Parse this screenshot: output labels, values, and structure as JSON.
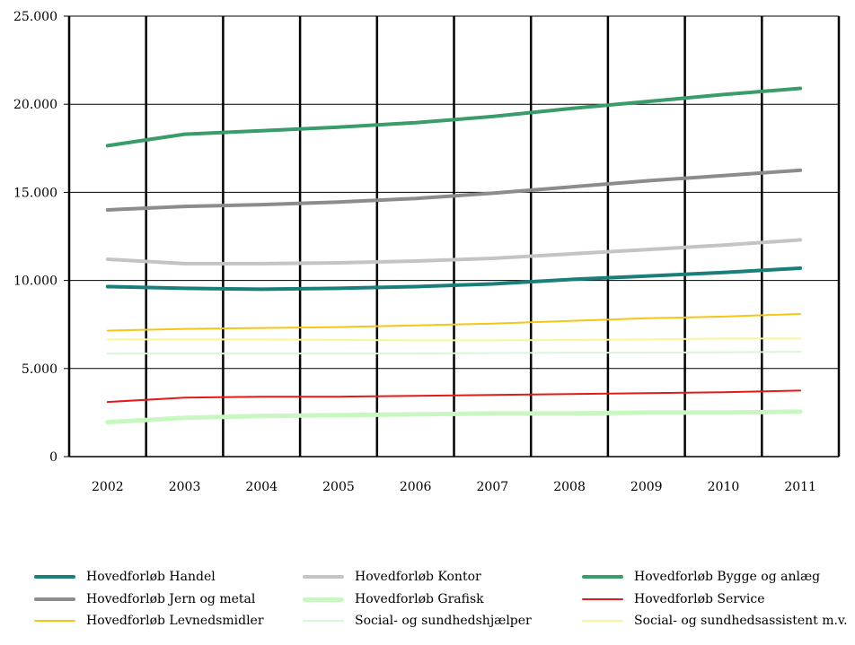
{
  "chart_data": {
    "type": "line",
    "title": "",
    "xlabel": "",
    "ylabel": "",
    "categories": [
      "2002",
      "2003",
      "2004",
      "2005",
      "2006",
      "2007",
      "2008",
      "2009",
      "2010",
      "2011"
    ],
    "y_ticks": [
      "0",
      "5.000",
      "10.000",
      "15.000",
      "20.000",
      "25.000"
    ],
    "y_tick_values": [
      0,
      5000,
      10000,
      15000,
      20000,
      25000
    ],
    "ylim": [
      0,
      25000
    ],
    "grid": "vertical and horizontal",
    "legend_position": "bottom",
    "series": [
      {
        "name": "Hovedforløb Handel",
        "color": "#1a7f7a",
        "width": 4,
        "values": [
          9650,
          9550,
          9500,
          9550,
          9650,
          9800,
          10050,
          10250,
          10450,
          10700
        ]
      },
      {
        "name": "Hovedforløb Kontor",
        "color": "#c4c4c4",
        "width": 4,
        "values": [
          11200,
          10950,
          10950,
          11000,
          11100,
          11250,
          11500,
          11750,
          12000,
          12300
        ]
      },
      {
        "name": "Hovedforløb Bygge og anlæg",
        "color": "#3a9c6a",
        "width": 4,
        "values": [
          17650,
          18300,
          18500,
          18700,
          18950,
          19300,
          19750,
          20150,
          20550,
          20900
        ]
      },
      {
        "name": "Hovedforløb Jern og metal",
        "color": "#8c8c8c",
        "width": 4,
        "values": [
          14000,
          14200,
          14300,
          14450,
          14650,
          14950,
          15300,
          15650,
          15950,
          16250
        ]
      },
      {
        "name": "Hovedforløb Grafisk",
        "color": "#c9f7c1",
        "width": 5,
        "values": [
          1950,
          2200,
          2300,
          2350,
          2400,
          2450,
          2450,
          2500,
          2500,
          2550
        ]
      },
      {
        "name": "Hovedforløb Service",
        "color": "#e31a1c",
        "width": 2,
        "values": [
          3100,
          3350,
          3400,
          3400,
          3450,
          3500,
          3550,
          3600,
          3650,
          3750
        ]
      },
      {
        "name": "Hovedforløb Levnedsmidler",
        "color": "#f5c518",
        "width": 2,
        "values": [
          7150,
          7250,
          7300,
          7350,
          7450,
          7550,
          7700,
          7850,
          7950,
          8100
        ]
      },
      {
        "name": "Social- og sundhedshjælper",
        "color": "#d8f6d8",
        "width": 2,
        "values": [
          5850,
          5850,
          5850,
          5850,
          5850,
          5880,
          5900,
          5900,
          5920,
          5950
        ]
      },
      {
        "name": "Social- og sundhedsassistent m.v.",
        "color": "#f8f59a",
        "width": 2,
        "values": [
          6650,
          6650,
          6650,
          6620,
          6600,
          6600,
          6620,
          6650,
          6700,
          6700
        ]
      }
    ]
  }
}
